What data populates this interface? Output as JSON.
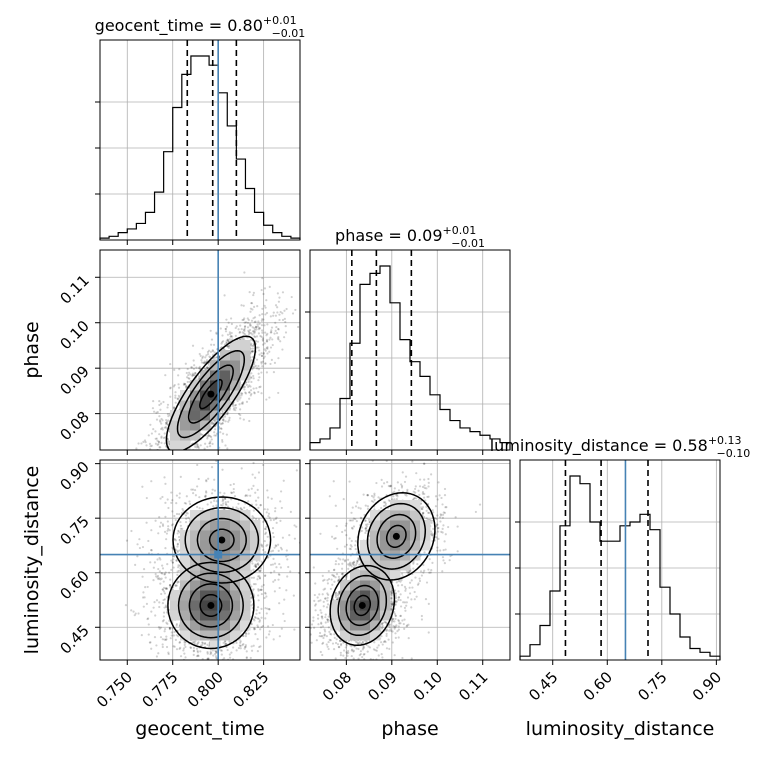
{
  "chart_data": {
    "type": "corner",
    "parameters": [
      {
        "name": "geocent_time",
        "label": "geocent_time",
        "title": "geocent_time = 0.80",
        "title_main": "geocent_time = 0.80",
        "title_sup": "+0.01",
        "title_sub": "−0.01",
        "range": [
          0.735,
          0.845
        ],
        "ticks": [
          0.75,
          0.775,
          0.8,
          0.825
        ],
        "tick_labels": [
          "0.750",
          "0.775",
          "0.800",
          "0.825"
        ],
        "truth": 0.8,
        "quantiles": [
          0.783,
          0.797,
          0.81
        ],
        "hist_edges": [
          0.735,
          0.845
        ],
        "hist_counts": [
          1,
          2,
          4,
          6,
          9,
          15,
          26,
          48,
          72,
          90,
          100,
          100,
          95,
          80,
          62,
          44,
          28,
          15,
          8,
          4,
          2,
          1
        ]
      },
      {
        "name": "phase",
        "label": "phase",
        "title": "phase = 0.09",
        "title_main": "phase = 0.09",
        "title_sup": "+0.01",
        "title_sub": "−0.01",
        "range": [
          0.072,
          0.116
        ],
        "ticks": [
          0.08,
          0.09,
          0.1,
          0.11
        ],
        "tick_labels": [
          "0.08",
          "0.09",
          "0.10",
          "0.11"
        ],
        "truth": null,
        "quantiles": [
          0.0812,
          0.0866,
          0.0943
        ],
        "hist_edges": [
          0.072,
          0.116
        ],
        "hist_counts": [
          4,
          6,
          12,
          28,
          58,
          90,
          96,
          100,
          80,
          60,
          48,
          40,
          30,
          22,
          16,
          12,
          10,
          8,
          6,
          4
        ]
      },
      {
        "name": "luminosity_distance",
        "label": "luminosity_distance",
        "title": "luminosity_distance = 0.58",
        "title_main": "luminosity_distance = 0.58",
        "title_sup": "+0.13",
        "title_sub": "−0.10",
        "range": [
          0.36,
          0.91
        ],
        "ticks": [
          0.45,
          0.6,
          0.75,
          0.9
        ],
        "tick_labels": [
          "0.45",
          "0.60",
          "0.75",
          "0.90"
        ],
        "truth": 0.65,
        "quantiles": [
          0.485,
          0.583,
          0.712
        ],
        "hist_edges": [
          0.36,
          0.91
        ],
        "hist_counts": [
          2,
          8,
          18,
          36,
          70,
          96,
          92,
          72,
          62,
          62,
          70,
          72,
          76,
          68,
          38,
          24,
          12,
          6,
          4,
          2
        ]
      }
    ],
    "pairs": [
      {
        "x": "geocent_time",
        "y": "phase",
        "peak": [
          0.796,
          0.0843
        ],
        "cov": [
          [
            0.00015,
            6.2e-05
          ],
          [
            6.2e-05,
            4.05e-05
          ]
        ],
        "nsamples": 2600
      },
      {
        "x": "geocent_time",
        "y": "luminosity_distance",
        "peaks": [
          {
            "center": [
              0.796,
              0.51
            ],
            "cov": [
              [
                0.00014,
                0
              ],
              [
                0,
                0.0035
              ]
            ],
            "weight": 0.6
          },
          {
            "center": [
              0.802,
              0.69
            ],
            "cov": [
              [
                0.00018,
                0
              ],
              [
                0,
                0.0035
              ]
            ],
            "weight": 0.4
          }
        ],
        "nsamples": 2600
      },
      {
        "x": "phase",
        "y": "luminosity_distance",
        "peaks": [
          {
            "center": [
              0.0835,
              0.51
            ],
            "cov": [
              [
                1.25e-05,
                3e-05
              ],
              [
                3e-05,
                0.003
              ]
            ],
            "weight": 0.6
          },
          {
            "center": [
              0.091,
              0.7
            ],
            "cov": [
              [
                1.8e-05,
                4e-05
              ],
              [
                4e-05,
                0.0036
              ]
            ],
            "weight": 0.4
          }
        ],
        "nsamples": 2600
      }
    ],
    "truth_color": "#4682b4",
    "hist_color": "#000000",
    "quantile_style": "dashed",
    "grid": true,
    "legend": "none"
  }
}
